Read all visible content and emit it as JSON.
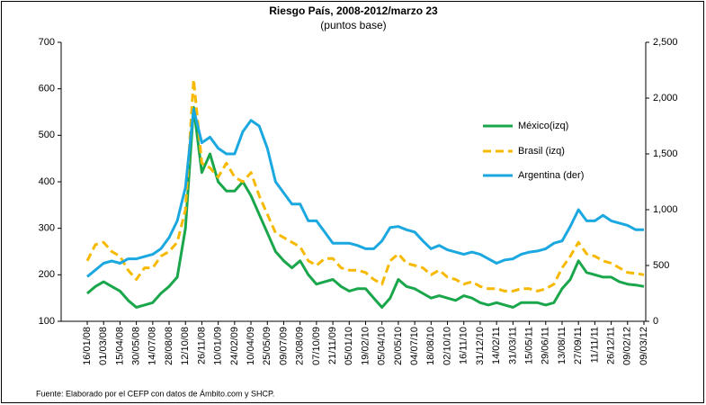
{
  "chart_data": {
    "type": "line",
    "title": "Riesgo País, 2008-2012/marzo  23",
    "subtitle": "(puntos base)",
    "note": "Fuente: Elaborado por el CEFP con datos de Ámbito.com y SHCP.",
    "categories": [
      "16/01/08",
      null,
      "01/03/08",
      null,
      "15/04/08",
      null,
      "30/05/08",
      null,
      "14/07/08",
      null,
      "28/08/08",
      null,
      "12/10/08",
      null,
      "26/11/08",
      null,
      "10/01/09",
      null,
      "24/02/09",
      null,
      "10/04/09",
      null,
      "25/05/09",
      null,
      "09/07/09",
      null,
      "23/08/09",
      null,
      "07/10/09",
      null,
      "21/11/09",
      null,
      "05/01/10",
      null,
      "19/02/10",
      null,
      "05/04/10",
      null,
      "20/05/10",
      null,
      "04/07/10",
      null,
      "18/08/10",
      null,
      "02/10/10",
      null,
      "16/11/10",
      null,
      "31/12/10",
      null,
      "14/02/11",
      null,
      "31/03/11",
      null,
      "15/05/11",
      null,
      "29/06/11",
      null,
      "13/08/11",
      null,
      "27/09/11",
      null,
      "11/11/11",
      null,
      "26/12/11",
      null,
      "09/02/12",
      null,
      "09/03/12"
    ],
    "series": [
      {
        "name": "México(izq)",
        "color": "#1aa64b",
        "line_style": "solid",
        "axis": "y",
        "values": [
          160,
          175,
          185,
          175,
          165,
          145,
          130,
          135,
          140,
          160,
          175,
          195,
          300,
          560,
          420,
          460,
          400,
          380,
          380,
          400,
          370,
          330,
          290,
          250,
          230,
          215,
          230,
          200,
          180,
          185,
          190,
          175,
          165,
          170,
          170,
          150,
          130,
          150,
          190,
          175,
          170,
          160,
          150,
          155,
          150,
          145,
          155,
          150,
          140,
          135,
          140,
          135,
          130,
          140,
          140,
          140,
          135,
          140,
          170,
          190,
          230,
          205,
          200,
          195,
          195,
          185,
          180,
          178,
          175
        ]
      },
      {
        "name": "Brasil (izq)",
        "color": "#f7b900",
        "line_style": "dashed",
        "axis": "y",
        "values": [
          230,
          265,
          270,
          250,
          240,
          210,
          190,
          215,
          215,
          240,
          250,
          270,
          340,
          620,
          440,
          430,
          410,
          440,
          410,
          400,
          420,
          370,
          330,
          290,
          280,
          270,
          260,
          230,
          220,
          235,
          235,
          215,
          210,
          210,
          205,
          190,
          180,
          230,
          245,
          225,
          220,
          215,
          200,
          210,
          195,
          190,
          180,
          185,
          175,
          170,
          170,
          165,
          165,
          170,
          170,
          165,
          170,
          180,
          215,
          240,
          270,
          245,
          240,
          230,
          225,
          215,
          205,
          203,
          200
        ]
      },
      {
        "name": "Argentina (der)",
        "color": "#1ba8e0",
        "line_style": "solid",
        "axis": "y2",
        "values": [
          400,
          460,
          520,
          540,
          520,
          560,
          560,
          580,
          600,
          650,
          750,
          900,
          1200,
          1900,
          1600,
          1650,
          1550,
          1500,
          1500,
          1700,
          1800,
          1750,
          1550,
          1250,
          1150,
          1050,
          1050,
          900,
          900,
          800,
          700,
          700,
          700,
          680,
          650,
          650,
          720,
          840,
          850,
          820,
          800,
          720,
          650,
          680,
          640,
          620,
          600,
          620,
          600,
          560,
          520,
          550,
          560,
          600,
          620,
          630,
          650,
          700,
          720,
          850,
          1000,
          900,
          900,
          950,
          900,
          880,
          860,
          820,
          820
        ]
      }
    ],
    "ylim": [
      100,
      700
    ],
    "yticks": [
      100,
      200,
      300,
      400,
      500,
      600,
      700
    ],
    "y2lim": [
      0,
      2500
    ],
    "y2ticks": [
      0,
      500,
      {
        "value": 1000,
        "label": "1,000"
      },
      {
        "value": 1500,
        "label": "1,500"
      },
      {
        "value": 2000,
        "label": "2,000"
      },
      {
        "value": 2500,
        "label": "2,500"
      }
    ],
    "legend": "right"
  }
}
